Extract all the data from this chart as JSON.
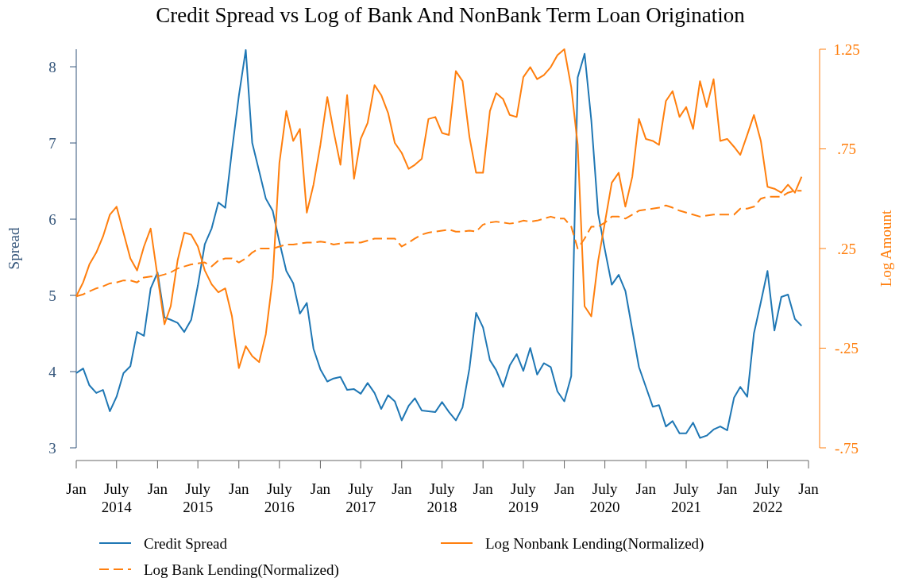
{
  "chart_data": {
    "type": "line",
    "title": "Credit Spread vs Log of Bank And NonBank Term Loan Origination",
    "ylabel": "Spread",
    "y2label": "Log Amount",
    "x": [
      "2014-01",
      "2014-02",
      "2014-03",
      "2014-04",
      "2014-05",
      "2014-06",
      "2014-07",
      "2014-08",
      "2014-09",
      "2014-10",
      "2014-11",
      "2014-12",
      "2015-01",
      "2015-02",
      "2015-03",
      "2015-04",
      "2015-05",
      "2015-06",
      "2015-07",
      "2015-08",
      "2015-09",
      "2015-10",
      "2015-11",
      "2015-12",
      "2016-01",
      "2016-02",
      "2016-03",
      "2016-04",
      "2016-05",
      "2016-06",
      "2016-07",
      "2016-08",
      "2016-09",
      "2016-10",
      "2016-11",
      "2016-12",
      "2017-01",
      "2017-02",
      "2017-03",
      "2017-04",
      "2017-05",
      "2017-06",
      "2017-07",
      "2017-08",
      "2017-09",
      "2017-10",
      "2017-11",
      "2017-12",
      "2018-01",
      "2018-02",
      "2018-03",
      "2018-04",
      "2018-05",
      "2018-06",
      "2018-07",
      "2018-08",
      "2018-09",
      "2018-10",
      "2018-11",
      "2018-12",
      "2019-01",
      "2019-02",
      "2019-03",
      "2019-04",
      "2019-05",
      "2019-06",
      "2019-07",
      "2019-08",
      "2019-09",
      "2019-10",
      "2019-11",
      "2019-12",
      "2020-01",
      "2020-02",
      "2020-03",
      "2020-04",
      "2020-05",
      "2020-06",
      "2020-07",
      "2020-08",
      "2020-09",
      "2020-10",
      "2020-11",
      "2020-12",
      "2021-01",
      "2021-02",
      "2021-03",
      "2021-04",
      "2021-05",
      "2021-06",
      "2021-07",
      "2021-08",
      "2021-09",
      "2021-10",
      "2021-11",
      "2021-12",
      "2022-01",
      "2022-02",
      "2022-03",
      "2022-04",
      "2022-05",
      "2022-06",
      "2022-07",
      "2022-08",
      "2022-09",
      "2022-10",
      "2022-11",
      "2022-12"
    ],
    "series": [
      {
        "name": "Credit Spread",
        "color": "#1f77b4",
        "line_style": "solid",
        "values": [
          3.98,
          4.04,
          3.82,
          3.72,
          3.76,
          3.48,
          3.67,
          3.98,
          4.07,
          4.52,
          4.47,
          5.09,
          5.3,
          4.71,
          4.68,
          4.64,
          4.52,
          4.68,
          5.13,
          5.67,
          5.88,
          6.22,
          6.15,
          6.9,
          7.62,
          8.22,
          7.0,
          6.63,
          6.27,
          6.11,
          5.7,
          5.32,
          5.16,
          4.76,
          4.9,
          4.3,
          4.03,
          3.87,
          3.91,
          3.93,
          3.76,
          3.77,
          3.71,
          3.85,
          3.72,
          3.51,
          3.69,
          3.61,
          3.36,
          3.55,
          3.65,
          3.49,
          3.48,
          3.47,
          3.6,
          3.47,
          3.36,
          3.53,
          4.04,
          4.77,
          4.58,
          4.15,
          4.02,
          3.8,
          4.08,
          4.23,
          4.01,
          4.31,
          3.96,
          4.11,
          4.06,
          3.74,
          3.61,
          3.94,
          7.86,
          8.17,
          7.3,
          6.07,
          5.6,
          5.14,
          5.27,
          5.06,
          4.55,
          4.06,
          3.8,
          3.54,
          3.56,
          3.28,
          3.35,
          3.19,
          3.19,
          3.33,
          3.13,
          3.16,
          3.24,
          3.28,
          3.23,
          3.66,
          3.8,
          3.67,
          4.5,
          4.91,
          5.32,
          4.54,
          4.98,
          5.01,
          4.69,
          4.6
        ]
      },
      {
        "name": "Log Nonbank Lending(Normalized)",
        "color": "#ff7f0e",
        "line_style": "solid",
        "axis": "y2",
        "values": [
          0.01,
          0.08,
          0.17,
          0.23,
          0.31,
          0.42,
          0.46,
          0.33,
          0.2,
          0.14,
          0.26,
          0.35,
          0.11,
          -0.13,
          -0.04,
          0.19,
          0.33,
          0.32,
          0.26,
          0.14,
          0.07,
          0.03,
          0.05,
          -0.09,
          -0.35,
          -0.24,
          -0.29,
          -0.32,
          -0.18,
          0.1,
          0.68,
          0.94,
          0.79,
          0.85,
          0.43,
          0.57,
          0.77,
          1.01,
          0.84,
          0.67,
          1.02,
          0.6,
          0.8,
          0.88,
          1.07,
          1.02,
          0.93,
          0.78,
          0.73,
          0.65,
          0.67,
          0.7,
          0.9,
          0.91,
          0.83,
          0.82,
          1.14,
          1.09,
          0.81,
          0.63,
          0.63,
          0.94,
          1.03,
          1.0,
          0.92,
          0.91,
          1.11,
          1.16,
          1.1,
          1.12,
          1.16,
          1.22,
          1.25,
          1.06,
          0.77,
          -0.04,
          -0.09,
          0.19,
          0.38,
          0.58,
          0.63,
          0.46,
          0.61,
          0.9,
          0.8,
          0.79,
          0.77,
          0.99,
          1.04,
          0.91,
          0.96,
          0.85,
          1.09,
          0.96,
          1.1,
          0.79,
          0.8,
          0.76,
          0.72,
          0.82,
          0.92,
          0.79,
          0.56,
          0.55,
          0.53,
          0.57,
          0.53,
          0.61
        ]
      },
      {
        "name": "Log Bank Lending(Normalized)",
        "color": "#ff7f0e",
        "line_style": "dashed",
        "axis": "y2",
        "values": [
          0.01,
          0.02,
          0.035,
          0.05,
          0.06,
          0.075,
          0.08,
          0.09,
          0.09,
          0.08,
          0.105,
          0.11,
          0.11,
          0.12,
          0.13,
          0.15,
          0.16,
          0.17,
          0.175,
          0.18,
          0.16,
          0.19,
          0.2,
          0.2,
          0.18,
          0.2,
          0.23,
          0.25,
          0.25,
          0.25,
          0.26,
          0.27,
          0.27,
          0.275,
          0.28,
          0.28,
          0.285,
          0.28,
          0.27,
          0.275,
          0.28,
          0.28,
          0.28,
          0.29,
          0.3,
          0.3,
          0.3,
          0.3,
          0.26,
          0.28,
          0.3,
          0.32,
          0.33,
          0.335,
          0.34,
          0.345,
          0.335,
          0.335,
          0.34,
          0.335,
          0.37,
          0.38,
          0.385,
          0.38,
          0.375,
          0.38,
          0.39,
          0.385,
          0.39,
          0.4,
          0.41,
          0.4,
          0.4,
          0.36,
          0.25,
          0.3,
          0.36,
          0.36,
          0.38,
          0.41,
          0.41,
          0.4,
          0.42,
          0.44,
          0.445,
          0.45,
          0.455,
          0.466,
          0.455,
          0.44,
          0.43,
          0.42,
          0.41,
          0.415,
          0.42,
          0.42,
          0.42,
          0.42,
          0.45,
          0.45,
          0.46,
          0.5,
          0.51,
          0.51,
          0.51,
          0.53,
          0.54,
          0.54
        ]
      }
    ],
    "xlim": [
      "2014-01",
      "2023-01"
    ],
    "xticks": [
      {
        "value": "2014-01",
        "label": "Jan"
      },
      {
        "value": "2014-07",
        "label": "July 2014"
      },
      {
        "value": "2015-01",
        "label": "Jan"
      },
      {
        "value": "2015-07",
        "label": "July 2015"
      },
      {
        "value": "2016-01",
        "label": "Jan"
      },
      {
        "value": "2016-07",
        "label": "July 2016"
      },
      {
        "value": "2017-01",
        "label": "Jan"
      },
      {
        "value": "2017-07",
        "label": "July 2017"
      },
      {
        "value": "2018-01",
        "label": "Jan"
      },
      {
        "value": "2018-07",
        "label": "July 2018"
      },
      {
        "value": "2019-01",
        "label": "Jan"
      },
      {
        "value": "2019-07",
        "label": "July 2019"
      },
      {
        "value": "2020-01",
        "label": "Jan"
      },
      {
        "value": "2020-07",
        "label": "July 2020"
      },
      {
        "value": "2021-01",
        "label": "Jan"
      },
      {
        "value": "2021-07",
        "label": "July 2021"
      },
      {
        "value": "2022-01",
        "label": "Jan"
      },
      {
        "value": "2022-07",
        "label": "July 2022"
      },
      {
        "value": "2023-01",
        "label": "Jan"
      }
    ],
    "ylim": [
      3,
      8.23
    ],
    "yticks": [
      3,
      4,
      5,
      6,
      7,
      8
    ],
    "y2lim": [
      -0.75,
      1.25
    ],
    "y2ticks": [
      {
        "value": -0.75,
        "label": "-.75"
      },
      {
        "value": -0.25,
        "label": "-.25"
      },
      {
        "value": 0.25,
        "label": ".25"
      },
      {
        "value": 0.75,
        "label": ".75"
      },
      {
        "value": 1.25,
        "label": "1.25"
      }
    ],
    "grid": false,
    "legend": "bottom",
    "marker": "none"
  }
}
